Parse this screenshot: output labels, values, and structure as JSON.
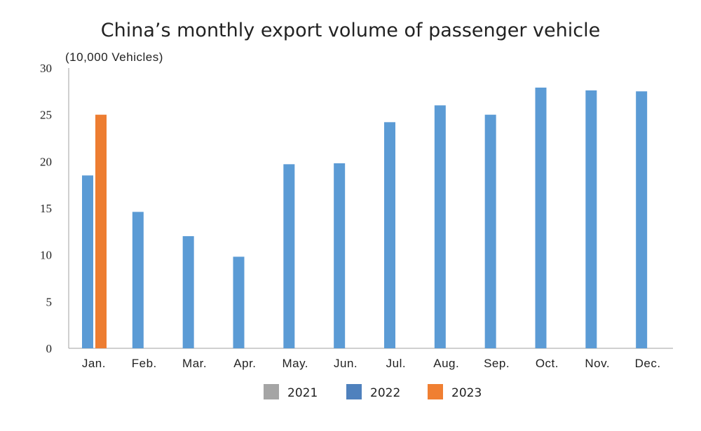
{
  "chart_data": {
    "type": "bar",
    "title": "China’s monthly export volume of passenger vehicle",
    "ylabel": "(10,000 Vehicles)",
    "xlabel": "",
    "ylim": [
      0,
      30
    ],
    "yticks": [
      "0",
      "5",
      "10",
      "15",
      "20",
      "25",
      "30"
    ],
    "grid": false,
    "legend_position": "bottom",
    "categories": [
      "Jan.",
      "Feb.",
      "Mar.",
      "Apr.",
      "May.",
      "Jun.",
      "Jul.",
      "Aug.",
      "Sep.",
      "Oct.",
      "Nov.",
      "Dec."
    ],
    "series": [
      {
        "name": "2021",
        "color": "#a5a5a5",
        "values": [
          null,
          null,
          null,
          null,
          null,
          null,
          null,
          null,
          null,
          null,
          null,
          null
        ]
      },
      {
        "name": "2022",
        "color": "#5b9bd5",
        "values": [
          18.5,
          14.6,
          12.0,
          9.8,
          19.7,
          19.8,
          24.2,
          26.0,
          25.0,
          27.9,
          27.6,
          27.5
        ]
      },
      {
        "name": "2023",
        "color": "#ed7d31",
        "values": [
          25.0,
          null,
          null,
          null,
          null,
          null,
          null,
          null,
          null,
          null,
          null,
          null
        ]
      }
    ],
    "legend_colors": {
      "2021": "#a5a5a5",
      "2022": "#4f81bd",
      "2023": "#f07f32"
    }
  }
}
